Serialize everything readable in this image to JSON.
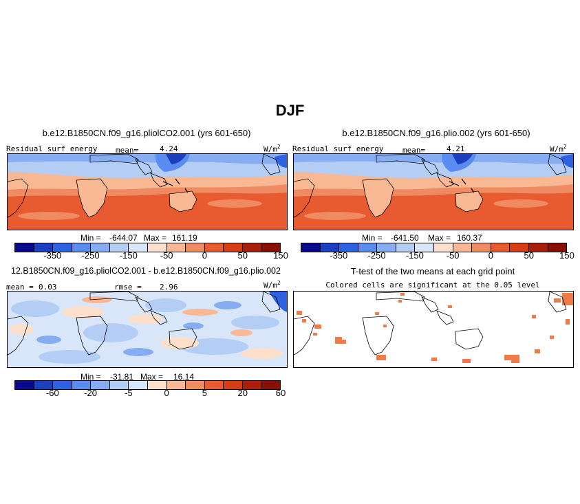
{
  "season": "DJF",
  "panels": {
    "top_left": {
      "title": "b.e12.B1850CN.f09_g16.pliolCO2.001 (yrs 601-650)",
      "variable": "Residual surf energy",
      "mean_label": "mean=",
      "mean_value": "4.24",
      "units_base": "W/m",
      "units_exp": "2",
      "min_label": "Min =",
      "min_value": "-644.07",
      "max_label": "Max =",
      "max_value": "161.19",
      "colorbar_ticks": [
        "-350",
        "-250",
        "-150",
        "-50",
        "0",
        "50",
        "150"
      ]
    },
    "top_right": {
      "title": "b.e12.B1850CN.f09_g16.plio.002 (yrs 601-650)",
      "variable": "Residual surf energy",
      "mean_label": "mean=",
      "mean_value": "4.21",
      "units_base": "W/m",
      "units_exp": "2",
      "min_label": "Min =",
      "min_value": "-641.50",
      "max_label": "Max =",
      "max_value": "160.37",
      "colorbar_ticks": [
        "-350",
        "-250",
        "-150",
        "-50",
        "0",
        "50",
        "150"
      ]
    },
    "bottom_left": {
      "title": "12.B1850CN.f09_g16.pliolCO2.001 - b.e12.B1850CN.f09_g16.plio.002",
      "mean_label": "mean =",
      "mean_value": "0.03",
      "rmse_label": "rmse =",
      "rmse_value": "2.96",
      "units_base": "W/m",
      "units_exp": "2",
      "min_label": "Min =",
      "min_value": "-31.81",
      "max_label": "Max =",
      "max_value": "16.14",
      "colorbar_ticks": [
        "-60",
        "-20",
        "-5",
        "0",
        "5",
        "20",
        "60"
      ]
    },
    "bottom_right": {
      "title": "T-test of the two means at each grid point",
      "subtitle": "Colored cells are significant at the 0.05 level"
    }
  },
  "colors": {
    "palette": [
      "#0a0a8c",
      "#1b3fbf",
      "#2f62e0",
      "#5a8cf0",
      "#86adf2",
      "#b3cdf5",
      "#d9e6f9",
      "#fde0cc",
      "#f9b894",
      "#f08a60",
      "#e85a30",
      "#d63d15",
      "#a81f0a",
      "#8a0f05"
    ],
    "sig_cell": "#f07a48"
  }
}
